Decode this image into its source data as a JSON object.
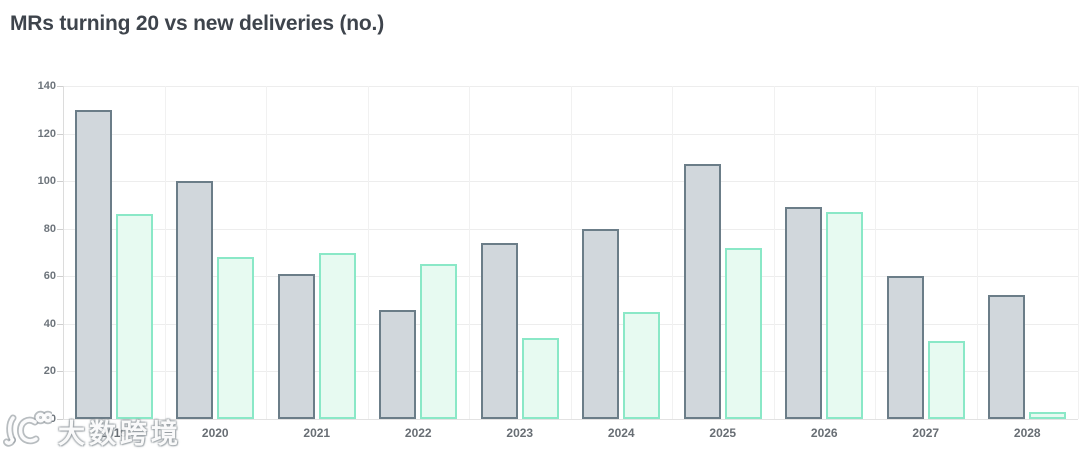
{
  "title": "MRs turning 20 vs new deliveries (no.)",
  "watermark": {
    "icon": "brand-swirl-logo-icon",
    "text": "大数跨境"
  },
  "chart_data": {
    "type": "bar",
    "title": "MRs turning 20 vs new deliveries (no.)",
    "categories": [
      "2019",
      "2020",
      "2021",
      "2022",
      "2023",
      "2024",
      "2025",
      "2026",
      "2027",
      "2028"
    ],
    "series": [
      {
        "name": "MRs turning 20",
        "fill": "#d1d7dc",
        "border": "#6b7d88",
        "values": [
          130,
          100,
          61,
          46,
          74,
          80,
          107,
          89,
          60,
          52
        ]
      },
      {
        "name": "New deliveries",
        "fill": "#e7faf1",
        "border": "#8ae8c7",
        "values": [
          86,
          68,
          70,
          65,
          34,
          45,
          72,
          87,
          33,
          3
        ]
      }
    ],
    "ylim": [
      0,
      140
    ],
    "ytick_step": 20,
    "yticks": [
      0,
      20,
      40,
      60,
      80,
      100,
      120,
      140
    ],
    "grid": true,
    "legend_position": "none",
    "xlabel": "",
    "ylabel": ""
  }
}
